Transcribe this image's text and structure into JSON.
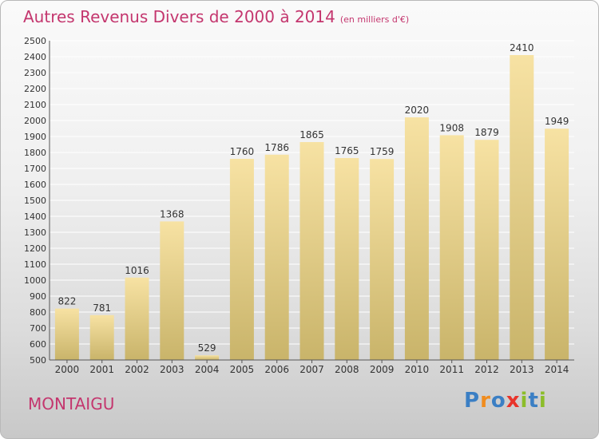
{
  "header": {
    "title": "Autres Revenus Divers de 2000 à 2014",
    "unit": "(en milliers d'€)"
  },
  "footer": {
    "commune": "MONTAIGU",
    "logo_text": "Proxiti",
    "logo_colors": [
      "#3b7fc4",
      "#f08c1e",
      "#3b7fc4",
      "#e8342b",
      "#8cbd2a",
      "#3b7fc4",
      "#8cbd2a"
    ]
  },
  "colors": {
    "title": "#c4366e",
    "bar_top": "#f7e2a3",
    "bar_bottom": "#c9b46a",
    "grid": "#ffffff"
  },
  "chart_data": {
    "type": "bar",
    "title": "Autres Revenus Divers de 2000 à 2014",
    "subtitle": "(en milliers d'€)",
    "xlabel": "",
    "ylabel": "",
    "categories": [
      "2000",
      "2001",
      "2002",
      "2003",
      "2004",
      "2005",
      "2006",
      "2007",
      "2008",
      "2009",
      "2010",
      "2011",
      "2012",
      "2013",
      "2014"
    ],
    "values": [
      822,
      781,
      1016,
      1368,
      529,
      1760,
      1786,
      1865,
      1765,
      1759,
      2020,
      1908,
      1879,
      2410,
      1949
    ],
    "ylim": [
      500,
      2500
    ],
    "ytick_step": 100,
    "grid": true,
    "data_labels": true
  }
}
